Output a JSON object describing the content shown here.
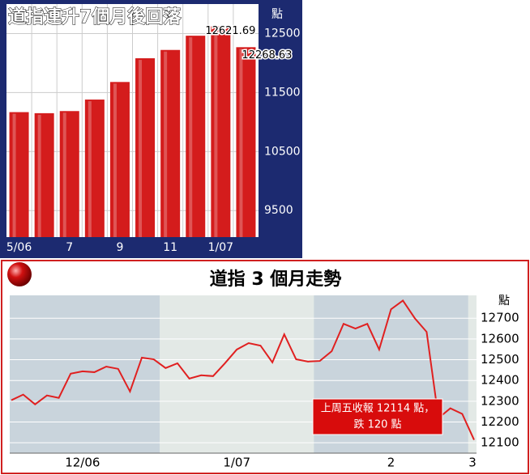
{
  "chart_data": [
    {
      "type": "bar",
      "title": "道指連升7個月後回落",
      "y_unit": "點",
      "categories": [
        "5/06",
        null,
        "7",
        null,
        "9",
        null,
        "11",
        null,
        "1/07",
        null
      ],
      "values": [
        11168,
        11150,
        11186,
        11381,
        11679,
        12081,
        12222,
        12463,
        12621.69,
        12268.63
      ],
      "value_labels": [
        null,
        null,
        null,
        null,
        null,
        null,
        null,
        null,
        "12621.69",
        "12268.63"
      ],
      "color": "#d41c1c",
      "ylim": [
        9050,
        13000
      ],
      "yticks": [
        9500,
        10500,
        11500,
        12500
      ],
      "grid": true
    },
    {
      "type": "line",
      "title": "道指 3 個月走勢",
      "y_unit": "點",
      "annotation": [
        "上周五收報 12114 點，",
        "跌 120 點"
      ],
      "categories": [
        null,
        null,
        null,
        null,
        null,
        null,
        "12/06",
        null,
        null,
        null,
        null,
        null,
        null,
        null,
        null,
        null,
        null,
        null,
        null,
        "1/07",
        null,
        null,
        null,
        null,
        null,
        null,
        null,
        null,
        null,
        null,
        null,
        null,
        "2",
        null,
        null,
        null,
        null,
        null,
        null,
        "3"
      ],
      "values": [
        12305,
        12332,
        12285,
        12328,
        12316,
        12433,
        12444,
        12440,
        12467,
        12456,
        12347,
        12510,
        12502,
        12460,
        12483,
        12409,
        12425,
        12421,
        12483,
        12549,
        12580,
        12568,
        12487,
        12622,
        12502,
        12491,
        12494,
        12541,
        12673,
        12650,
        12673,
        12549,
        12743,
        12785,
        12700,
        12634,
        12219,
        12266,
        12239,
        12114
      ],
      "color": "#e02020",
      "ylim": [
        12050,
        12810
      ],
      "yticks": [
        12100,
        12200,
        12300,
        12400,
        12500,
        12600,
        12700
      ],
      "grid": true
    }
  ]
}
